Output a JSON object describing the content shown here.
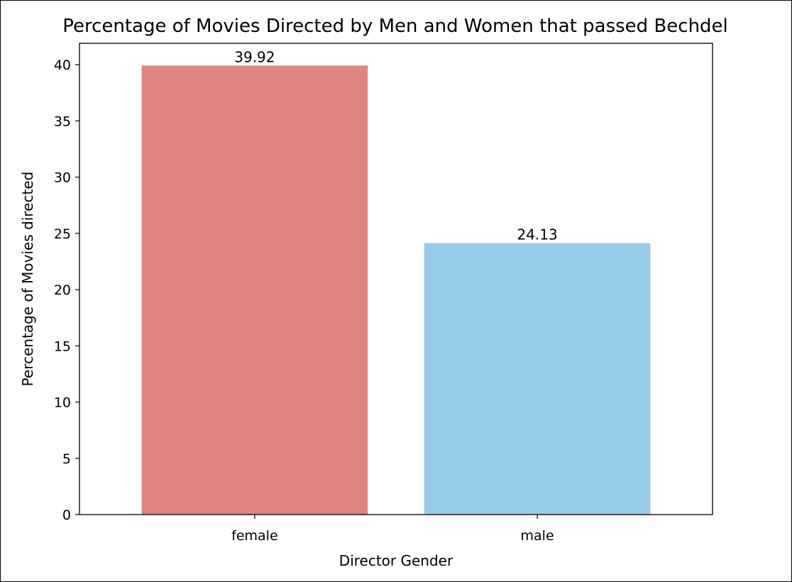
{
  "chart_data": {
    "type": "bar",
    "title": "Percentage of Movies Directed by Men and Women that passed Bechdel",
    "xlabel": "Director Gender",
    "ylabel": "Percentage of Movies directed",
    "categories": [
      "female",
      "male"
    ],
    "values": [
      39.92,
      24.13
    ],
    "data_labels": [
      "39.92",
      "24.13"
    ],
    "colors": [
      "#e08480",
      "#98cbe7"
    ],
    "ylim": [
      0,
      41.9
    ],
    "yticks": [
      0,
      5,
      10,
      15,
      20,
      25,
      30,
      35,
      40
    ],
    "grid": false,
    "legend": "none"
  }
}
